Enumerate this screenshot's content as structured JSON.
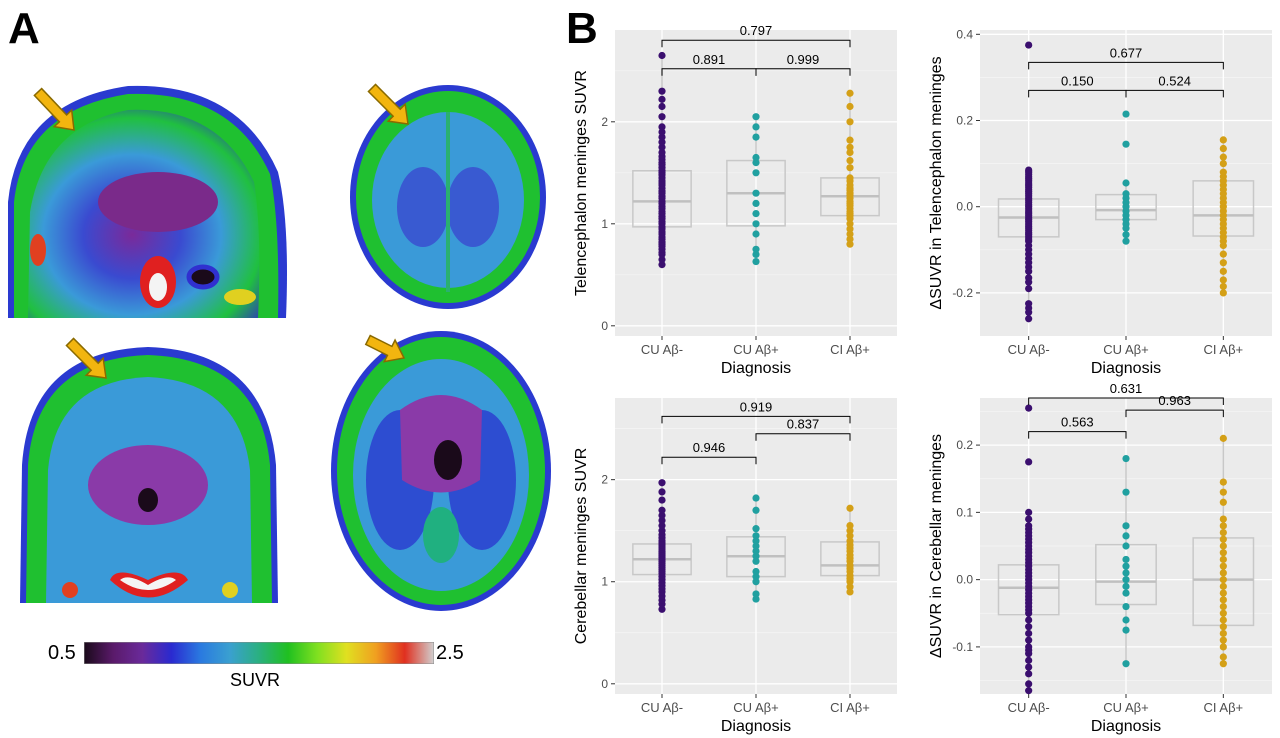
{
  "panels": {
    "a_label": "A",
    "b_label": "B"
  },
  "colorbar": {
    "min_label": "0.5",
    "max_label": "2.5",
    "title": "SUVR",
    "stops": [
      "#1a0a1a",
      "#5a1a6a",
      "#6a2a9a",
      "#2a2ad0",
      "#2a7ae0",
      "#3aa0d0",
      "#2ab080",
      "#20c020",
      "#80e020",
      "#e0e020",
      "#f0a020",
      "#e03020",
      "#d0d0d0"
    ]
  },
  "colors": {
    "cu_neg": "#3b0f6f",
    "cu_pos": "#20a0a0",
    "ci_pos": "#d4a017",
    "arrow": "#f2b50f"
  },
  "chart_data": [
    {
      "type": "scatter",
      "xlabel": "Diagnosis",
      "ylabel": "Telencephalon meninges SUVR",
      "categories": [
        "CU Aβ-",
        "CU Aβ+",
        "CI Aβ+"
      ],
      "ylim": [
        -0.1,
        2.9
      ],
      "yticks": [
        0,
        1,
        2
      ],
      "ytick_labels": [
        "0",
        "1",
        "2"
      ],
      "boxes": [
        {
          "q1": 0.97,
          "median": 1.22,
          "q3": 1.52,
          "lo": 0.6,
          "hi": 2.65
        },
        {
          "q1": 0.98,
          "median": 1.3,
          "q3": 1.62,
          "lo": 0.63,
          "hi": 2.05
        },
        {
          "q1": 1.08,
          "median": 1.27,
          "q3": 1.45,
          "lo": 0.8,
          "hi": 2.28
        }
      ],
      "series": [
        {
          "values": [
            0.6,
            0.65,
            0.7,
            0.72,
            0.75,
            0.78,
            0.8,
            0.82,
            0.85,
            0.87,
            0.9,
            0.92,
            0.95,
            0.97,
            1.0,
            1.02,
            1.05,
            1.07,
            1.1,
            1.12,
            1.15,
            1.17,
            1.2,
            1.22,
            1.25,
            1.27,
            1.3,
            1.32,
            1.35,
            1.38,
            1.4,
            1.42,
            1.45,
            1.48,
            1.5,
            1.52,
            1.55,
            1.58,
            1.6,
            1.63,
            1.66,
            1.7,
            1.75,
            1.8,
            1.85,
            1.9,
            1.95,
            2.05,
            2.15,
            2.22,
            2.3,
            2.65
          ]
        },
        {
          "values": [
            0.63,
            0.7,
            0.75,
            0.9,
            1.0,
            1.1,
            1.2,
            1.3,
            1.5,
            1.6,
            1.65,
            1.85,
            1.95,
            2.05
          ]
        },
        {
          "values": [
            0.8,
            0.85,
            0.9,
            0.95,
            1.0,
            1.05,
            1.08,
            1.1,
            1.12,
            1.15,
            1.18,
            1.2,
            1.22,
            1.25,
            1.28,
            1.3,
            1.33,
            1.35,
            1.38,
            1.42,
            1.45,
            1.55,
            1.62,
            1.7,
            1.75,
            1.82,
            2.0,
            2.15,
            2.28
          ]
        }
      ],
      "comparisons": [
        {
          "from": 0,
          "to": 2,
          "level": 2.8,
          "label": "0.797"
        },
        {
          "from": 0,
          "to": 1,
          "level": 2.52,
          "label": "0.891"
        },
        {
          "from": 1,
          "to": 2,
          "level": 2.52,
          "label": "0.999"
        }
      ]
    },
    {
      "type": "scatter",
      "xlabel": "Diagnosis",
      "ylabel": "ΔSUVR in Telencephalon meninges",
      "categories": [
        "CU Aβ-",
        "CU Aβ+",
        "CI Aβ+"
      ],
      "ylim": [
        -0.3,
        0.41
      ],
      "yticks": [
        -0.2,
        0,
        0.2,
        0.4
      ],
      "ytick_labels": [
        "-0.2",
        "0.0",
        "0.2",
        "0.4"
      ],
      "boxes": [
        {
          "q1": -0.07,
          "median": -0.025,
          "q3": 0.018,
          "lo": -0.26,
          "hi": 0.085
        },
        {
          "q1": -0.03,
          "median": -0.008,
          "q3": 0.028,
          "lo": -0.08,
          "hi": 0.055
        },
        {
          "q1": -0.068,
          "median": -0.02,
          "q3": 0.06,
          "lo": -0.2,
          "hi": 0.155
        }
      ],
      "series": [
        {
          "values": [
            -0.26,
            -0.245,
            -0.235,
            -0.225,
            -0.19,
            -0.175,
            -0.165,
            -0.15,
            -0.14,
            -0.13,
            -0.12,
            -0.11,
            -0.1,
            -0.09,
            -0.08,
            -0.075,
            -0.07,
            -0.065,
            -0.06,
            -0.055,
            -0.05,
            -0.045,
            -0.04,
            -0.035,
            -0.03,
            -0.025,
            -0.02,
            -0.015,
            -0.01,
            -0.005,
            0.0,
            0.005,
            0.01,
            0.015,
            0.02,
            0.025,
            0.03,
            0.035,
            0.04,
            0.045,
            0.05,
            0.055,
            0.06,
            0.065,
            0.07,
            0.075,
            0.08,
            0.085,
            0.375
          ]
        },
        {
          "values": [
            -0.08,
            -0.065,
            -0.05,
            -0.04,
            -0.03,
            -0.02,
            -0.01,
            0.0,
            0.01,
            0.02,
            0.03,
            0.055,
            0.145,
            0.215
          ]
        },
        {
          "values": [
            -0.2,
            -0.185,
            -0.17,
            -0.15,
            -0.13,
            -0.11,
            -0.09,
            -0.08,
            -0.07,
            -0.06,
            -0.05,
            -0.04,
            -0.03,
            -0.02,
            -0.01,
            0.0,
            0.01,
            0.02,
            0.03,
            0.04,
            0.05,
            0.06,
            0.07,
            0.08,
            0.1,
            0.115,
            0.135,
            0.155
          ]
        }
      ],
      "comparisons": [
        {
          "from": 0,
          "to": 2,
          "level": 0.335,
          "label": "0.677"
        },
        {
          "from": 0,
          "to": 1,
          "level": 0.27,
          "label": "0.150"
        },
        {
          "from": 1,
          "to": 2,
          "level": 0.27,
          "label": "0.524"
        }
      ]
    },
    {
      "type": "scatter",
      "xlabel": "Diagnosis",
      "ylabel": "Cerebellar meninges SUVR",
      "categories": [
        "CU Aβ-",
        "CU Aβ+",
        "CI Aβ+"
      ],
      "ylim": [
        -0.1,
        2.8
      ],
      "yticks": [
        0,
        1,
        2
      ],
      "ytick_labels": [
        "0",
        "1",
        "2"
      ],
      "boxes": [
        {
          "q1": 1.07,
          "median": 1.22,
          "q3": 1.37,
          "lo": 0.73,
          "hi": 1.97
        },
        {
          "q1": 1.05,
          "median": 1.25,
          "q3": 1.44,
          "lo": 0.83,
          "hi": 1.82
        },
        {
          "q1": 1.06,
          "median": 1.16,
          "q3": 1.39,
          "lo": 0.9,
          "hi": 1.72
        }
      ],
      "series": [
        {
          "values": [
            0.73,
            0.78,
            0.82,
            0.86,
            0.9,
            0.93,
            0.96,
            0.99,
            1.02,
            1.05,
            1.08,
            1.1,
            1.12,
            1.14,
            1.16,
            1.18,
            1.2,
            1.22,
            1.24,
            1.26,
            1.28,
            1.3,
            1.32,
            1.34,
            1.36,
            1.38,
            1.4,
            1.43,
            1.46,
            1.5,
            1.55,
            1.6,
            1.65,
            1.7,
            1.8,
            1.88,
            1.97
          ]
        },
        {
          "values": [
            0.83,
            0.88,
            1.0,
            1.05,
            1.1,
            1.2,
            1.25,
            1.3,
            1.35,
            1.4,
            1.45,
            1.52,
            1.7,
            1.82
          ]
        },
        {
          "values": [
            0.9,
            0.95,
            1.0,
            1.03,
            1.06,
            1.1,
            1.13,
            1.16,
            1.2,
            1.23,
            1.26,
            1.3,
            1.33,
            1.36,
            1.4,
            1.45,
            1.5,
            1.55,
            1.72
          ]
        }
      ],
      "comparisons": [
        {
          "from": 0,
          "to": 2,
          "level": 2.62,
          "label": "0.919"
        },
        {
          "from": 0,
          "to": 1,
          "level": 2.22,
          "label": "0.946"
        },
        {
          "from": 1,
          "to": 2,
          "level": 2.45,
          "label": "0.837"
        }
      ]
    },
    {
      "type": "scatter",
      "xlabel": "Diagnosis",
      "ylabel": "ΔSUVR in Cerebellar meninges",
      "categories": [
        "CU Aβ-",
        "CU Aβ+",
        "CI Aβ+"
      ],
      "ylim": [
        -0.17,
        0.27
      ],
      "yticks": [
        -0.1,
        0,
        0.1,
        0.2
      ],
      "ytick_labels": [
        "-0.1",
        "0.0",
        "0.1",
        "0.2"
      ],
      "boxes": [
        {
          "q1": -0.052,
          "median": -0.012,
          "q3": 0.022,
          "lo": -0.165,
          "hi": 0.1
        },
        {
          "q1": -0.037,
          "median": -0.003,
          "q3": 0.052,
          "lo": -0.125,
          "hi": 0.18
        },
        {
          "q1": -0.068,
          "median": 0.0,
          "q3": 0.062,
          "lo": -0.125,
          "hi": 0.21
        }
      ],
      "series": [
        {
          "values": [
            -0.165,
            -0.155,
            -0.14,
            -0.13,
            -0.12,
            -0.11,
            -0.105,
            -0.1,
            -0.09,
            -0.08,
            -0.07,
            -0.06,
            -0.05,
            -0.045,
            -0.04,
            -0.035,
            -0.03,
            -0.025,
            -0.02,
            -0.015,
            -0.01,
            -0.005,
            0.0,
            0.005,
            0.01,
            0.015,
            0.02,
            0.025,
            0.03,
            0.035,
            0.04,
            0.045,
            0.05,
            0.055,
            0.06,
            0.065,
            0.07,
            0.075,
            0.08,
            0.09,
            0.1,
            0.175,
            0.255
          ]
        },
        {
          "values": [
            -0.125,
            -0.075,
            -0.06,
            -0.04,
            -0.02,
            -0.01,
            0.0,
            0.01,
            0.02,
            0.03,
            0.05,
            0.065,
            0.08,
            0.13,
            0.18
          ]
        },
        {
          "values": [
            -0.125,
            -0.115,
            -0.1,
            -0.09,
            -0.08,
            -0.07,
            -0.06,
            -0.05,
            -0.04,
            -0.03,
            -0.02,
            -0.01,
            0.0,
            0.01,
            0.02,
            0.03,
            0.04,
            0.05,
            0.06,
            0.07,
            0.08,
            0.09,
            0.115,
            0.13,
            0.145,
            0.21
          ]
        }
      ],
      "comparisons": [
        {
          "from": 0,
          "to": 2,
          "level": 0.27,
          "label": "0.631"
        },
        {
          "from": 0,
          "to": 1,
          "level": 0.22,
          "label": "0.563"
        },
        {
          "from": 1,
          "to": 2,
          "level": 0.252,
          "label": "0.963"
        }
      ]
    }
  ]
}
